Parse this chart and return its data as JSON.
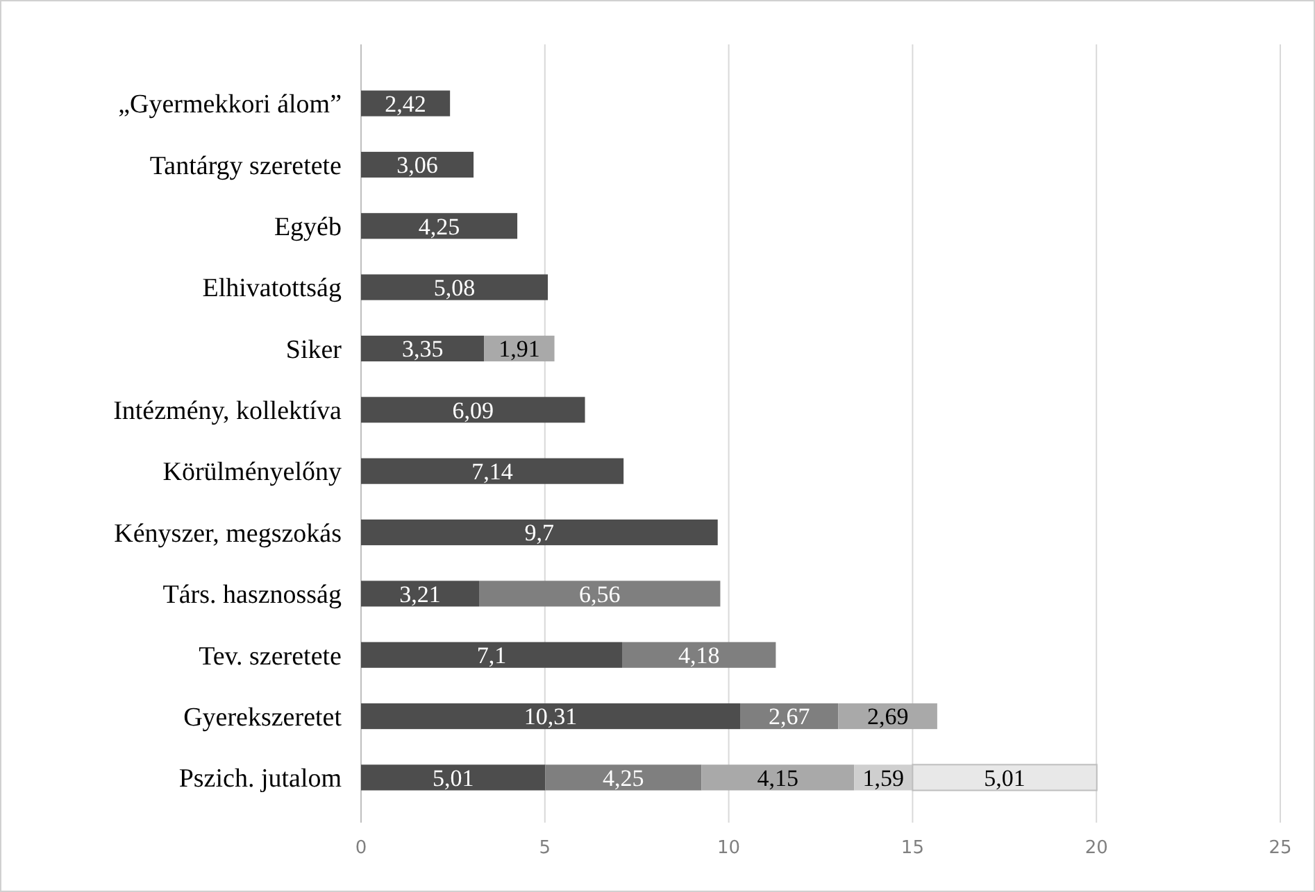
{
  "chart_data": {
    "type": "bar",
    "orientation": "horizontal",
    "stacked": true,
    "categories": [
      "„Gyermekkori álom”",
      "Tantárgy szeretete",
      "Egyéb",
      "Elhivatottság",
      "Siker",
      "Intézmény, kollektíva",
      "Körülményelőny",
      "Kényszer, megszokás",
      "Társ. hasznosság",
      "Tev. szeretete",
      "Gyerekszeretet",
      "Pszich. jutalom"
    ],
    "series": [
      {
        "color": "#4d4d4d",
        "values": [
          2.42,
          3.06,
          4.25,
          5.08,
          3.35,
          6.09,
          7.14,
          9.7,
          3.21,
          7.1,
          10.31,
          5.01
        ],
        "value_labels": [
          "2,42",
          "3,06",
          "4,25",
          "5,08",
          "3,35",
          "6,09",
          "7,14",
          "9,7",
          "3,21",
          "7,1",
          "10,31",
          "5,01"
        ]
      },
      {
        "color": "#7f7f7f",
        "values": [
          null,
          null,
          null,
          null,
          null,
          null,
          null,
          null,
          6.56,
          4.18,
          2.67,
          4.25
        ],
        "value_labels": [
          null,
          null,
          null,
          null,
          null,
          null,
          null,
          null,
          "6,56",
          "4,18",
          "2,67",
          "4,25"
        ]
      },
      {
        "color": "#a9a9a9",
        "values": [
          null,
          null,
          null,
          null,
          1.91,
          null,
          null,
          null,
          null,
          null,
          2.69,
          4.15
        ],
        "value_labels": [
          null,
          null,
          null,
          null,
          "1,91",
          null,
          null,
          null,
          null,
          null,
          "2,69",
          "4,15"
        ]
      },
      {
        "color": "#cfcfcf",
        "values": [
          null,
          null,
          null,
          null,
          null,
          null,
          null,
          null,
          null,
          null,
          null,
          1.59
        ],
        "value_labels": [
          null,
          null,
          null,
          null,
          null,
          null,
          null,
          null,
          null,
          null,
          null,
          "1,59"
        ]
      },
      {
        "color": "#e8e8e8",
        "values": [
          null,
          null,
          null,
          null,
          null,
          null,
          null,
          null,
          null,
          null,
          null,
          5.01
        ],
        "value_labels": [
          null,
          null,
          null,
          null,
          null,
          null,
          null,
          null,
          null,
          null,
          null,
          "5,01"
        ]
      }
    ],
    "xlim": [
      0,
      25
    ],
    "xticks": [
      0,
      5,
      10,
      15,
      20,
      25
    ],
    "grid": "x"
  }
}
